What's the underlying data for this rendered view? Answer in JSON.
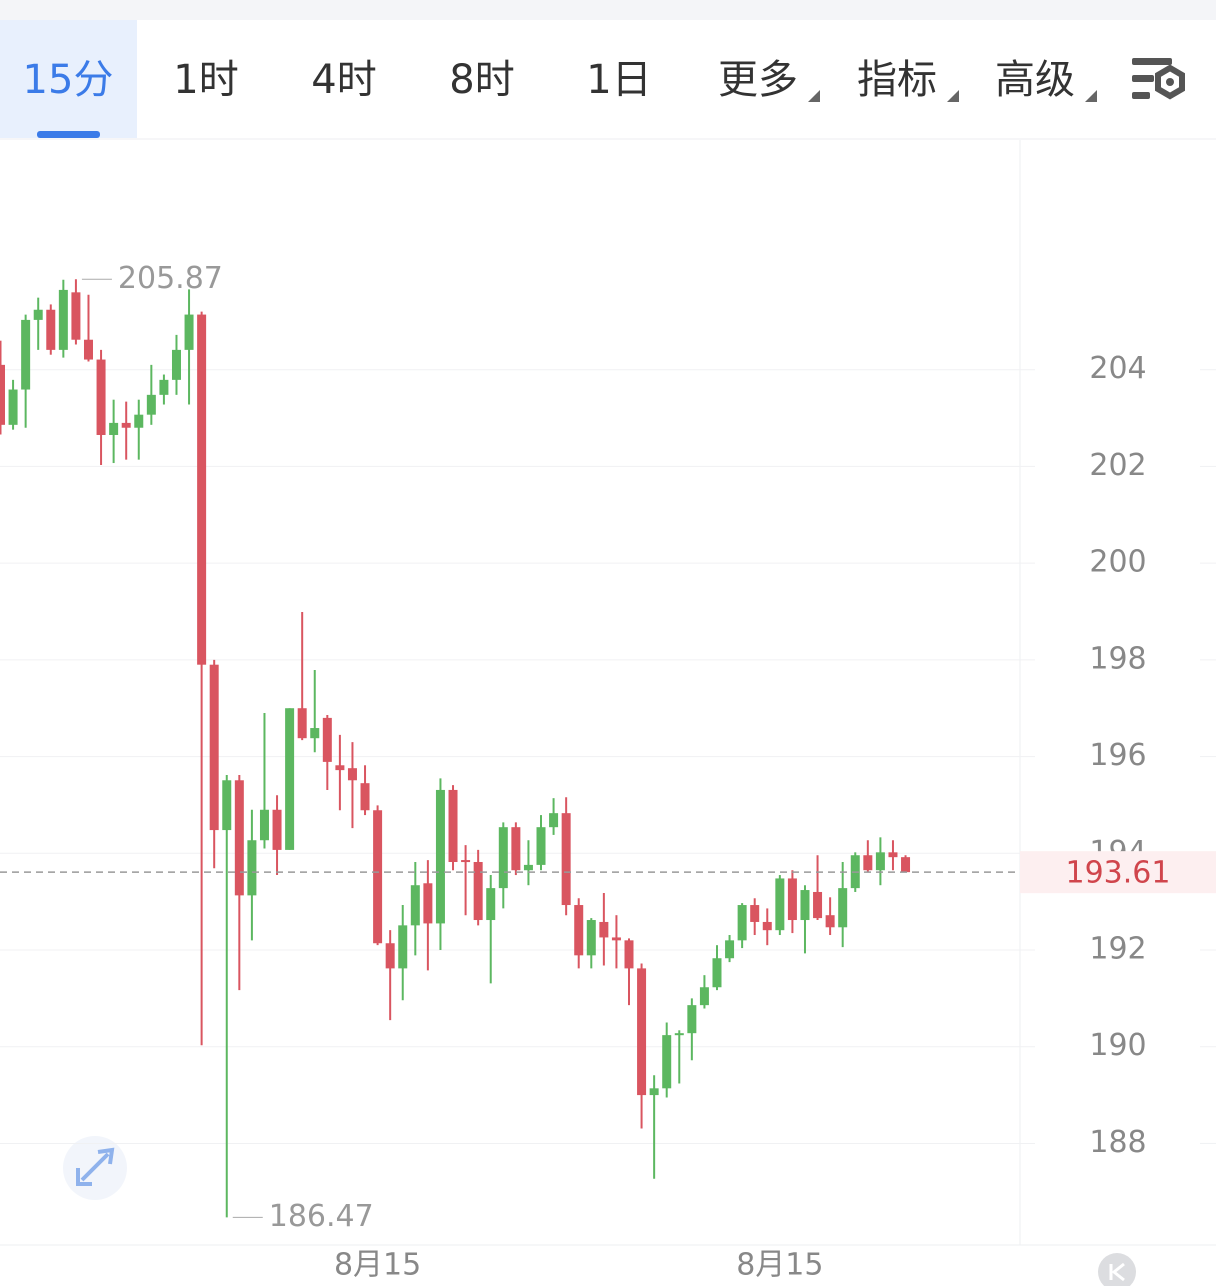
{
  "tabs": [
    "15分",
    "1时",
    "4时",
    "8时",
    "1日",
    "更多",
    "指标",
    "高级"
  ],
  "chart_data": {
    "type": "candlestick",
    "categories": [
      null,
      null,
      null,
      null,
      null,
      null,
      null,
      null,
      null,
      null,
      null,
      null,
      null,
      null,
      null,
      null,
      null,
      null,
      null,
      null,
      null,
      null,
      null,
      null,
      null,
      null,
      null,
      null,
      null,
      null,
      "8月15",
      null,
      null,
      null,
      null,
      null,
      null,
      null,
      null,
      null,
      null,
      null,
      null,
      null,
      null,
      null,
      null,
      null,
      null,
      null,
      null,
      null,
      null,
      null,
      null,
      null,
      null,
      null,
      null,
      null,
      null,
      null,
      "8月15",
      null,
      null,
      null,
      null,
      null,
      null,
      null,
      null,
      null,
      null
    ],
    "open": [
      204.1,
      202.86,
      203.59,
      205.03,
      205.24,
      204.41,
      205.6,
      204.62,
      204.21,
      202.65,
      202.9,
      202.8,
      203.07,
      203.48,
      203.79,
      204.41,
      205.14,
      197.9,
      194.48,
      195.51,
      193.13,
      194.27,
      194.9,
      194.07,
      197.0,
      196.38,
      196.8,
      195.82,
      195.76,
      195.45,
      194.89,
      192.14,
      191.62,
      192.51,
      193.38,
      192.55,
      195.31,
      193.86,
      193.82,
      192.62,
      193.28,
      194.54,
      193.65,
      193.76,
      194.54,
      194.83,
      192.93,
      191.89,
      192.58,
      192.26,
      192.2,
      191.62,
      189.0,
      189.14,
      190.24,
      190.28,
      190.86,
      191.23,
      191.83,
      192.2,
      192.93,
      192.58,
      192.41,
      193.48,
      192.62,
      193.2,
      192.72,
      192.47,
      193.28,
      193.96,
      193.65,
      194.02,
      193.92
    ],
    "high": [
      204.6,
      203.79,
      205.14,
      205.49,
      205.35,
      205.86,
      205.87,
      205.55,
      204.41,
      203.38,
      203.34,
      203.38,
      204.1,
      203.9,
      204.72,
      205.66,
      205.2,
      198.0,
      195.62,
      195.62,
      194.9,
      196.9,
      195.2,
      197.0,
      198.99,
      197.79,
      196.86,
      196.45,
      196.3,
      195.82,
      194.99,
      192.41,
      192.93,
      193.82,
      193.86,
      195.55,
      195.41,
      194.17,
      194.07,
      193.55,
      194.64,
      194.64,
      194.27,
      194.79,
      195.14,
      195.16,
      193.07,
      192.66,
      193.18,
      192.72,
      192.24,
      191.72,
      189.41,
      190.5,
      190.34,
      191.0,
      191.48,
      192.1,
      192.31,
      192.97,
      193.07,
      192.86,
      193.55,
      193.65,
      193.34,
      193.96,
      193.09,
      193.82,
      194.02,
      194.27,
      194.33,
      194.27,
      193.96
    ],
    "low": [
      202.66,
      202.76,
      202.8,
      204.41,
      204.31,
      204.25,
      204.52,
      204.17,
      202.03,
      202.07,
      202.14,
      202.14,
      202.86,
      203.28,
      203.48,
      203.28,
      190.03,
      193.69,
      186.47,
      191.17,
      192.2,
      194.1,
      193.55,
      194.07,
      196.34,
      196.09,
      195.31,
      194.89,
      194.52,
      194.79,
      192.1,
      190.55,
      190.96,
      191.89,
      191.58,
      192.0,
      193.65,
      192.72,
      192.51,
      191.31,
      192.86,
      193.55,
      193.34,
      193.65,
      194.38,
      192.72,
      191.62,
      191.62,
      191.68,
      191.62,
      190.86,
      188.31,
      187.27,
      188.95,
      189.24,
      189.72,
      190.79,
      191.17,
      191.75,
      192.04,
      192.31,
      192.1,
      192.31,
      192.35,
      191.93,
      192.62,
      192.31,
      192.06,
      193.2,
      193.61,
      193.34,
      193.65,
      193.61
    ],
    "close": [
      202.86,
      203.59,
      205.03,
      205.24,
      204.41,
      205.65,
      204.62,
      204.21,
      202.65,
      202.9,
      202.8,
      203.07,
      203.48,
      203.79,
      204.41,
      205.14,
      197.9,
      194.48,
      195.51,
      193.13,
      194.27,
      194.9,
      194.07,
      197.0,
      196.38,
      196.59,
      195.89,
      195.72,
      195.51,
      194.89,
      192.14,
      191.62,
      192.51,
      193.34,
      192.55,
      195.31,
      193.82,
      193.82,
      192.62,
      193.28,
      194.54,
      193.65,
      193.76,
      194.54,
      194.83,
      192.93,
      191.89,
      192.62,
      192.26,
      192.2,
      191.62,
      189.0,
      189.14,
      190.24,
      190.28,
      190.86,
      191.23,
      191.83,
      192.2,
      192.93,
      192.58,
      192.41,
      193.48,
      192.62,
      193.24,
      192.66,
      192.47,
      193.28,
      193.96,
      193.65,
      194.02,
      193.92,
      193.61
    ],
    "up_color": "#5cb760",
    "down_color": "#d95560",
    "ylim": [
      185.9,
      208.75
    ],
    "yticks": [
      188,
      190,
      192,
      194,
      196,
      198,
      200,
      202,
      204
    ],
    "grid": true,
    "max_label": 205.87,
    "min_label": 186.47,
    "last_price": 193.61
  }
}
